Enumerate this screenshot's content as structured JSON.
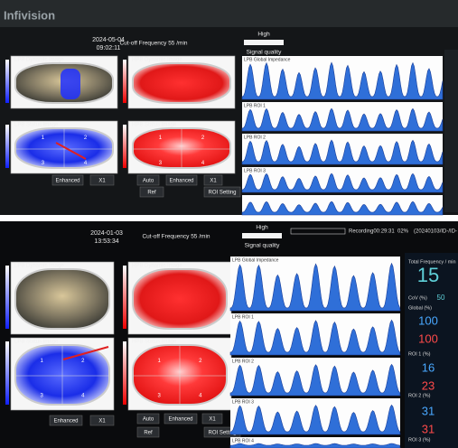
{
  "top": {
    "brand": "Infivision",
    "date": "2024-05-04",
    "time": "09:02:11",
    "cutoff": "Cut-off Frequency 55 /min",
    "quality_level": "High",
    "quality_label": "Signal quality",
    "images": [
      "LPB Dynamic Image",
      "HPB Dynamic Image",
      "LPB Status Image",
      "HPB Status Image"
    ],
    "waveforms": [
      "LPB Global Impedance",
      "LPB ROI 1",
      "LPB ROI 2",
      "LPB ROI 3"
    ],
    "quadrants": [
      "1",
      "2",
      "3",
      "4"
    ],
    "buttons": [
      "Enhanced",
      "X1",
      "Auto",
      "Enhanced",
      "X1",
      "Ref",
      "ROI Setting"
    ]
  },
  "bottom": {
    "date": "2024-01-03",
    "time": "13:53:34",
    "cutoff": "Cut-off Frequency 55 /min",
    "quality_level": "High",
    "quality_label": "Signal quality",
    "recording": "Recording00:29:31",
    "percent": "02%",
    "file": "(20240103/ID-/ID-",
    "images": [
      "LPB Dynamic Image",
      "HPB Dynamic Image",
      "LPB Status Image",
      "HPB Status Image"
    ],
    "waveforms": [
      "LPB Global Impedance",
      "LPB ROI 1",
      "LPB ROI 2",
      "LPB ROI 3",
      "LPB ROI 4"
    ],
    "quadrants": [
      "1",
      "2",
      "3",
      "4"
    ],
    "buttons": [
      "Enhanced",
      "X1",
      "Auto",
      "Enhanced",
      "X1",
      "Ref",
      "ROI Setting"
    ],
    "metrics": [
      {
        "label": "Total Frequency / min",
        "values": [
          15
        ]
      },
      {
        "label": "CoV (%)",
        "values": [
          50
        ]
      },
      {
        "label": "Global (%)",
        "values": [
          100,
          100
        ]
      },
      {
        "label": "ROI 1 (%)",
        "values": [
          16,
          23
        ]
      },
      {
        "label": "ROI 2 (%)",
        "values": [
          31,
          31
        ]
      },
      {
        "label": "ROI 3 (%)"
      }
    ]
  }
}
